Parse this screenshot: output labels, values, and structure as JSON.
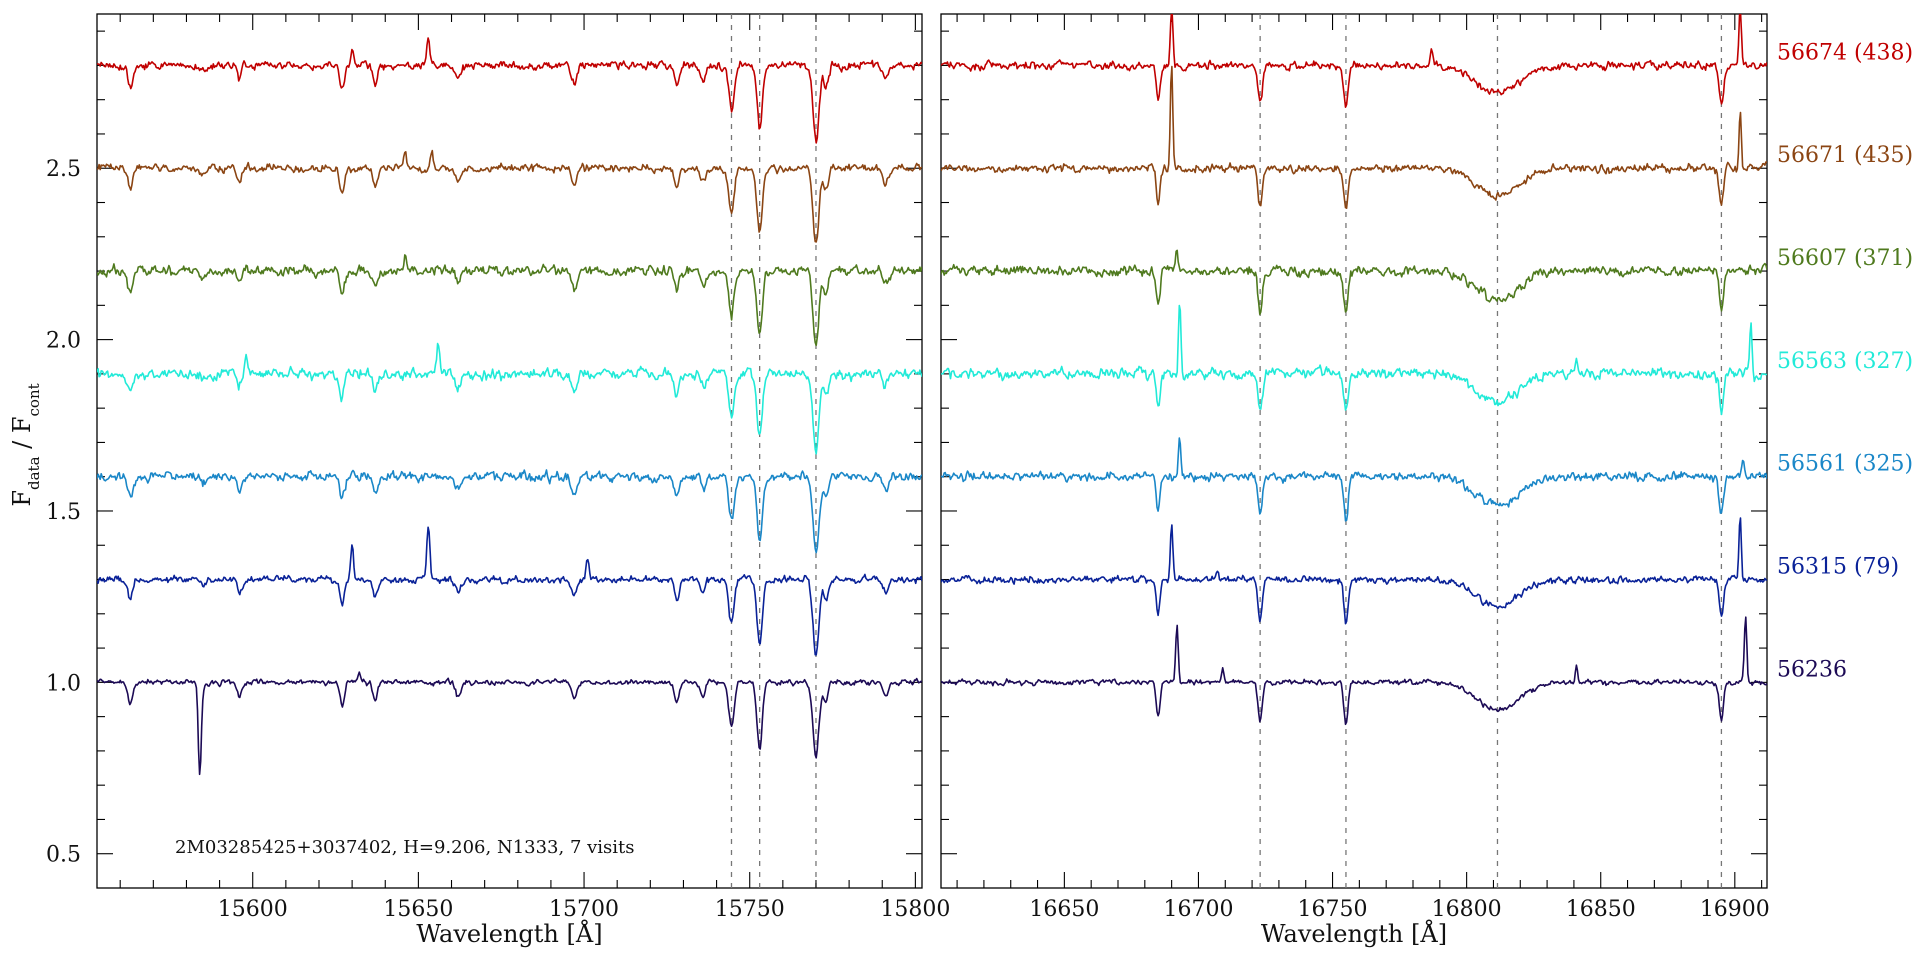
{
  "chart_data": {
    "type": "line",
    "ylabel": {
      "main": "F",
      "sub1": "data",
      "mid": " / F",
      "sub2": "cont"
    },
    "annotation": "2M03285425+3037402,    H=9.206,    N1333,    7 visits",
    "ylim": [
      0.4,
      2.95
    ],
    "yticks": [
      0.5,
      1.0,
      1.5,
      2.0,
      2.5
    ],
    "ytick_labels": [
      "0.5",
      "1.0",
      "1.5",
      "2.0",
      "2.5"
    ],
    "grid": false,
    "panels": [
      {
        "xlabel": "Wavelength [Å]",
        "xlim": [
          15553,
          15802
        ],
        "xticks": [
          15600,
          15650,
          15700,
          15750,
          15800
        ],
        "xtick_labels": [
          "15600",
          "15650",
          "15700",
          "15750",
          "15800"
        ],
        "reference_lines": [
          15744.5,
          15753,
          15770
        ],
        "features": [
          {
            "x": 15563,
            "depth": 0.06,
            "width": 0.8
          },
          {
            "x": 15585,
            "depth": 0.02,
            "width": 0.8
          },
          {
            "x": 15596,
            "depth": 0.04,
            "width": 0.7
          },
          {
            "x": 15627,
            "depth": 0.07,
            "width": 0.7
          },
          {
            "x": 15637,
            "depth": 0.05,
            "width": 0.7
          },
          {
            "x": 15662,
            "depth": 0.04,
            "width": 0.8
          },
          {
            "x": 15697,
            "depth": 0.05,
            "width": 0.8
          },
          {
            "x": 15728,
            "depth": 0.06,
            "width": 0.7
          },
          {
            "x": 15736,
            "depth": 0.04,
            "width": 0.7
          },
          {
            "x": 15744.5,
            "depth": 0.13,
            "width": 0.8
          },
          {
            "x": 15753,
            "depth": 0.19,
            "width": 0.8
          },
          {
            "x": 15770,
            "depth": 0.22,
            "width": 0.9
          },
          {
            "x": 15773,
            "depth": 0.06,
            "width": 0.7
          },
          {
            "x": 15791,
            "depth": 0.04,
            "width": 0.8
          }
        ]
      },
      {
        "xlabel": "Wavelength [Å]",
        "xlim": [
          16604,
          16912
        ],
        "xticks": [
          16650,
          16700,
          16750,
          16800,
          16850,
          16900
        ],
        "xtick_labels": [
          "16650",
          "16700",
          "16750",
          "16800",
          "16850",
          "16900"
        ],
        "reference_lines": [
          16723,
          16755,
          16811.5,
          16895
        ],
        "features": [
          {
            "x": 16685,
            "depth": 0.1,
            "width": 0.7
          },
          {
            "x": 16723,
            "depth": 0.11,
            "width": 0.8
          },
          {
            "x": 16755,
            "depth": 0.12,
            "width": 0.8
          },
          {
            "x": 16811.5,
            "depth": 0.08,
            "width": 8
          },
          {
            "x": 16895,
            "depth": 0.11,
            "width": 0.8
          }
        ]
      }
    ],
    "series": [
      {
        "name": "56674 (438)",
        "offset": 2.8,
        "color": "#c00000",
        "noise": 0.009,
        "seed": 11,
        "spikes": [
          [
            0,
            15653,
            0.08
          ],
          [
            0,
            15630,
            0.04
          ],
          [
            1,
            16690,
            0.17
          ],
          [
            1,
            16787,
            0.06
          ],
          [
            1,
            16902,
            0.17
          ]
        ]
      },
      {
        "name": "56671 (435)",
        "offset": 2.5,
        "color": "#8b4513",
        "noise": 0.009,
        "seed": 23,
        "spikes": [
          [
            0,
            15646,
            0.06
          ],
          [
            0,
            15654,
            0.05
          ],
          [
            1,
            16690,
            0.3
          ],
          [
            1,
            16902,
            0.17
          ]
        ]
      },
      {
        "name": "56607 (371)",
        "offset": 2.2,
        "color": "#4f7a1e",
        "noise": 0.011,
        "seed": 37,
        "spikes": [
          [
            0,
            15646,
            0.04
          ],
          [
            1,
            16692,
            0.05
          ]
        ]
      },
      {
        "name": "56563 (327)",
        "offset": 1.9,
        "color": "#22ead8",
        "noise": 0.012,
        "seed": 41,
        "spikes": [
          [
            0,
            15656,
            0.1
          ],
          [
            0,
            15598,
            0.06
          ],
          [
            1,
            16693,
            0.22
          ],
          [
            1,
            16841,
            0.05
          ],
          [
            1,
            16906,
            0.15
          ]
        ]
      },
      {
        "name": "56561 (325)",
        "offset": 1.6,
        "color": "#1a87c8",
        "noise": 0.01,
        "seed": 53,
        "spikes": [
          [
            1,
            16693,
            0.12
          ],
          [
            1,
            16903,
            0.05
          ]
        ]
      },
      {
        "name": "56315 (79)",
        "offset": 1.3,
        "color": "#0a2298",
        "noise": 0.008,
        "seed": 67,
        "spikes": [
          [
            0,
            15653,
            0.16
          ],
          [
            0,
            15630,
            0.1
          ],
          [
            0,
            15701,
            0.06
          ],
          [
            1,
            16690,
            0.15
          ],
          [
            1,
            16902,
            0.2
          ],
          [
            1,
            16707,
            0.03
          ]
        ]
      },
      {
        "name": "56236",
        "offset": 1.0,
        "color": "#1c0a55",
        "noise": 0.006,
        "seed": 79,
        "spikes": [
          [
            0,
            15584,
            -0.26
          ],
          [
            0,
            15632,
            0.03
          ],
          [
            1,
            16692,
            0.17
          ],
          [
            1,
            16709,
            0.04
          ],
          [
            1,
            16904,
            0.19
          ],
          [
            1,
            16841,
            0.05
          ]
        ]
      }
    ]
  }
}
